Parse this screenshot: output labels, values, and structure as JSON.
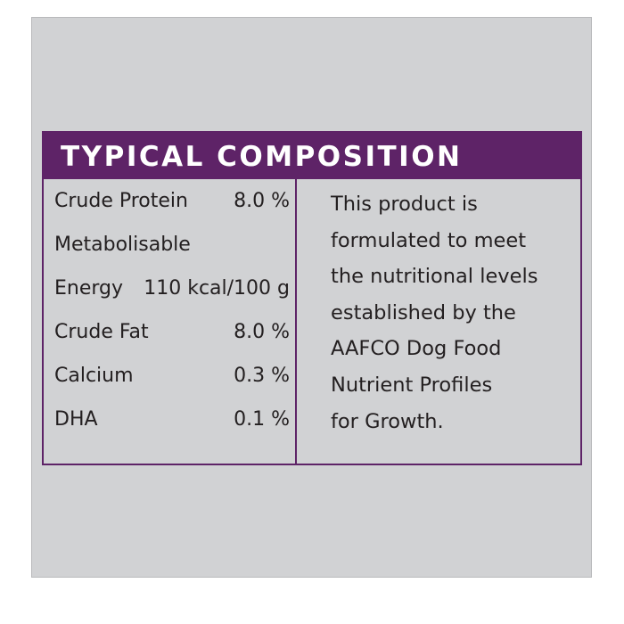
{
  "title": "TYPICAL COMPOSITION",
  "rows": [
    {
      "label": "Crude Protein",
      "value": "8.0 %"
    },
    {
      "label": "Metabolisable",
      "value": ""
    },
    {
      "label": "Energy",
      "value": "110 kcal/100 g"
    },
    {
      "label": "Crude Fat",
      "value": "8.0 %"
    },
    {
      "label": "Calcium",
      "value": "0.3 %"
    },
    {
      "label": "DHA",
      "value": "0.1 %"
    }
  ],
  "statement_lines": [
    "This product is",
    "formulated to meet",
    "the nutritional levels",
    "established by the",
    "AAFCO Dog Food",
    "Nutrient Profiles",
    "for Growth."
  ],
  "colors": {
    "accent": "#5e2367",
    "background": "#d1d2d4",
    "text": "#231f20"
  }
}
